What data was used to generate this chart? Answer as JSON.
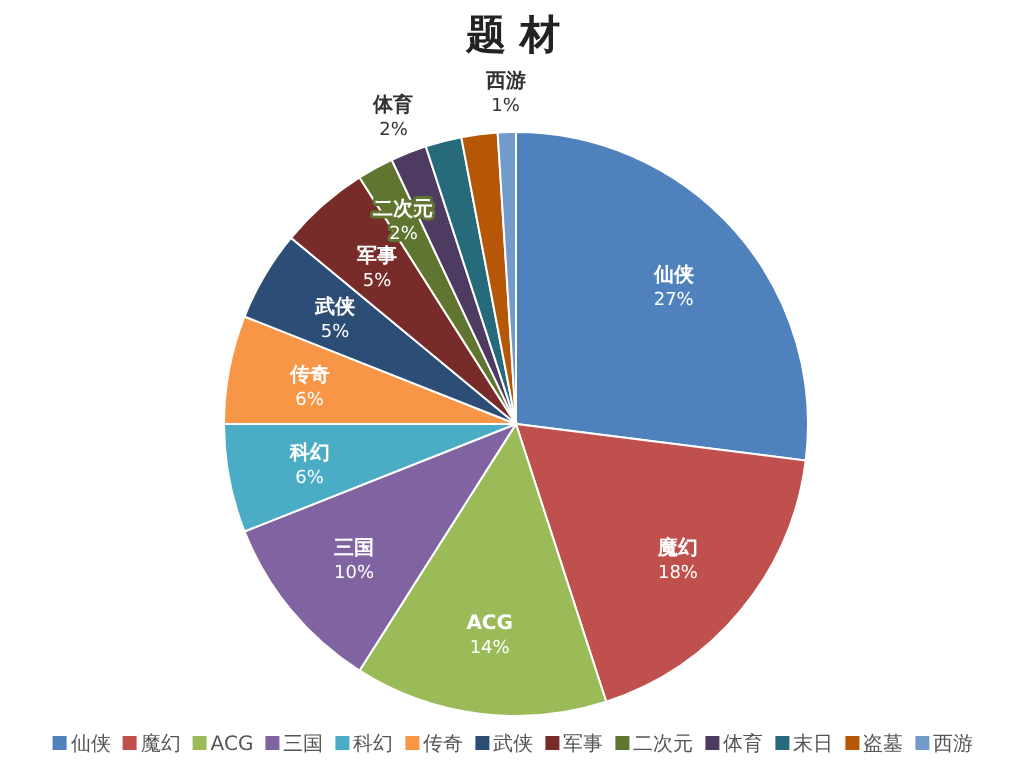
{
  "chart_data": {
    "type": "pie",
    "title": "题 材",
    "categories": [
      "仙侠",
      "魔幻",
      "ACG",
      "三国",
      "科幻",
      "传奇",
      "武侠",
      "军事",
      "二次元",
      "体育",
      "末日",
      "盗墓",
      "西游"
    ],
    "values": [
      27,
      18,
      14,
      10,
      6,
      6,
      5,
      5,
      2,
      2,
      2,
      2,
      1
    ],
    "value_labels": [
      "27%",
      "18%",
      "14%",
      "10%",
      "6%",
      "6%",
      "5%",
      "5%",
      "2%",
      "2%",
      null,
      null,
      "1%"
    ],
    "colors": [
      "#4f81bd",
      "#c0504d",
      "#9bbb59",
      "#8064a2",
      "#4bacc6",
      "#f79646",
      "#2c4d75",
      "#772c2a",
      "#5f7530",
      "#4d3b62",
      "#276a7c",
      "#b65708",
      "#729aca"
    ],
    "legend": "bottom"
  }
}
